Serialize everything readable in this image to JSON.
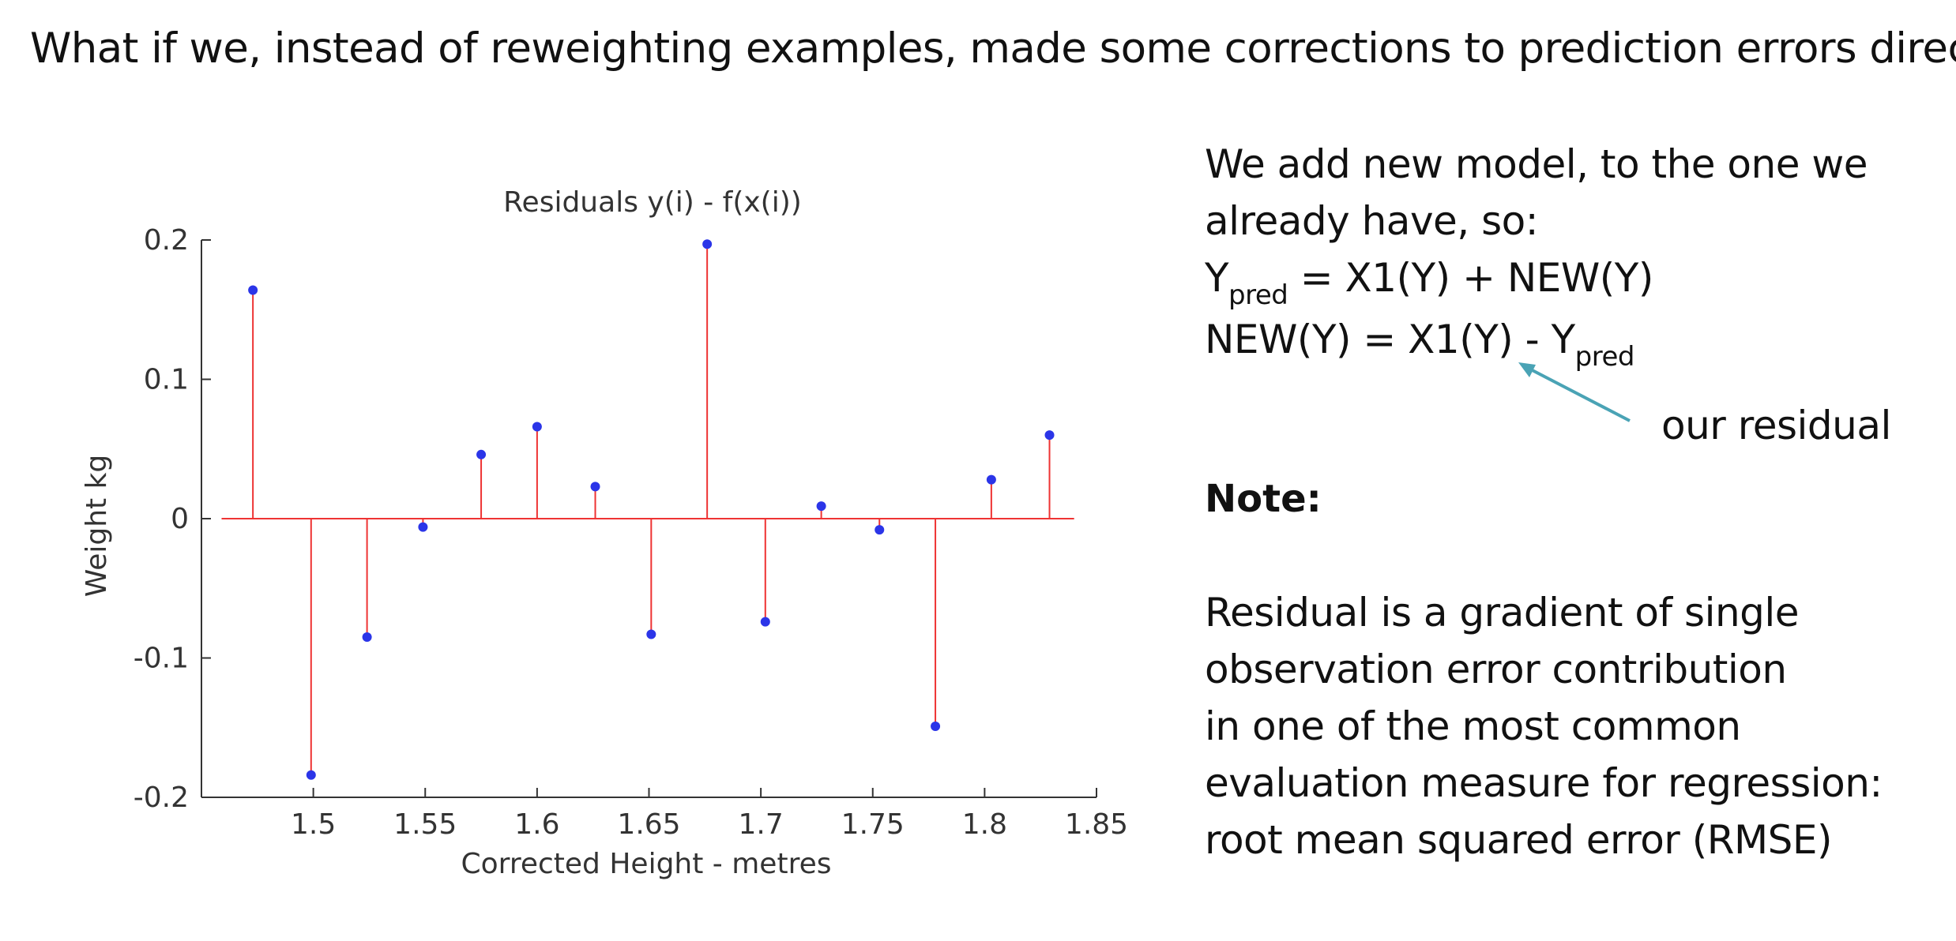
{
  "slide": {
    "title": "What if we, instead of reweighting examples, made some corrections to prediction errors directly?"
  },
  "explanation": {
    "line1": "We add new model, to the one we",
    "line2": "already have, so:",
    "eq1_prefix": "Y",
    "eq1_sub": "pred",
    "eq1_rest": " = X1(Y) + NEW(Y)",
    "eq2_prefix": "NEW(Y) = X1(Y) - Y",
    "eq2_sub": "pred",
    "residual_label": "our residual",
    "arrow_color": "#4aa3b5"
  },
  "note": {
    "heading": "Note:",
    "lines": [
      "Residual is a gradient of single",
      "observation error contribution",
      "in one of the most common",
      "evaluation measure for regression:",
      "root mean squared error (RMSE)"
    ]
  },
  "chart_data": {
    "type": "stem",
    "title": "Residuals y(i) - f(x(i))",
    "xlabel": "Corrected Height - metres",
    "ylabel": "Weight kg",
    "xlim": [
      1.45,
      1.85
    ],
    "ylim": [
      -0.2,
      0.2
    ],
    "xticks": [
      1.5,
      1.55,
      1.6,
      1.65,
      1.7,
      1.75,
      1.8,
      1.85
    ],
    "xtick_labels": [
      "1.5",
      "1.55",
      "1.6",
      "1.65",
      "1.7",
      "1.75",
      "1.8",
      "1.85"
    ],
    "yticks": [
      -0.2,
      -0.1,
      0,
      0.1,
      0.2
    ],
    "ytick_labels": [
      "-0.2",
      "-0.1",
      "0",
      "0.1",
      "0.2"
    ],
    "baseline_range": [
      1.459,
      1.84
    ],
    "stem_color": "#ee3333",
    "marker_color": "#2b35e8",
    "x": [
      1.473,
      1.499,
      1.524,
      1.549,
      1.575,
      1.6,
      1.626,
      1.651,
      1.676,
      1.702,
      1.727,
      1.753,
      1.778,
      1.803,
      1.829
    ],
    "y": [
      0.164,
      -0.184,
      -0.085,
      -0.006,
      0.046,
      0.066,
      0.023,
      -0.083,
      0.197,
      -0.074,
      0.009,
      -0.008,
      -0.149,
      0.028,
      0.06
    ]
  }
}
